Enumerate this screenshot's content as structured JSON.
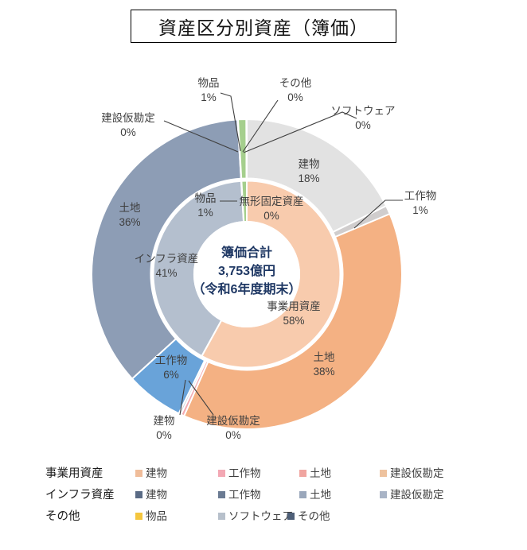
{
  "title": "資産区分別資産（簿価）",
  "chart_data": {
    "type": "pie",
    "subtype": "double-donut",
    "title": "資産区分別資産（簿価）",
    "center_label": {
      "line1": "簿価合計",
      "line2": "3,753億円",
      "line3": "（令和6年度期末）"
    },
    "total_label": "簿価合計 3,753億円（令和6年度期末）",
    "rings": [
      {
        "name": "inner",
        "slices": [
          {
            "label": "事業用資産",
            "pct": 58,
            "display": "58%",
            "color": "#f8cbad",
            "draw": 58
          },
          {
            "label": "インフラ資産",
            "pct": 41,
            "display": "41%",
            "color": "#b4bfce",
            "draw": 41.05
          },
          {
            "label": "無形固定資産",
            "pct": 0,
            "display": "0%",
            "color": "#d9d9d9",
            "draw": 0.05
          },
          {
            "label": "物品",
            "pct": 1,
            "display": "1%",
            "color": "#a5cf8d",
            "draw": 0.9
          }
        ]
      },
      {
        "name": "outer",
        "slices": [
          {
            "group": "事業用資産",
            "label": "建物",
            "pct": 18,
            "display": "18%",
            "color": "#e2e2e2",
            "draw": 17.75
          },
          {
            "group": "事業用資産",
            "label": "工作物",
            "pct": 1,
            "display": "1%",
            "color": "#d0cdcd",
            "draw": 0.9
          },
          {
            "group": "事業用資産",
            "label": "土地",
            "pct": 38,
            "display": "38%",
            "color": "#f4b183",
            "draw": 38
          },
          {
            "group": "事業用資産",
            "label": "建設仮勘定",
            "pct": 0,
            "display": "0%",
            "color": "#f2aab2",
            "draw": 0.35
          },
          {
            "group": "インフラ資産",
            "label": "建物",
            "pct": 0,
            "display": "0%",
            "color": "#c9d1dc",
            "draw": 0.25
          },
          {
            "group": "インフラ資産",
            "label": "工作物",
            "pct": 6,
            "display": "6%",
            "color": "#69a3d9",
            "draw": 6
          },
          {
            "group": "インフラ資産",
            "label": "土地",
            "pct": 36,
            "display": "36%",
            "color": "#8d9db5",
            "draw": 35.85
          },
          {
            "group": "インフラ資産",
            "label": "建設仮勘定",
            "pct": 0,
            "display": "0%",
            "color": "#a9b4c6",
            "draw": 0.05
          },
          {
            "group": "その他",
            "label": "物品",
            "pct": 1,
            "display": "1%",
            "color": "#a5cf8d",
            "draw": 0.85
          },
          {
            "group": "その他",
            "label": "ソフトウェア",
            "pct": 0,
            "display": "0%",
            "color": "#b7c0cb",
            "draw": 0.03
          },
          {
            "group": "その他",
            "label": "その他",
            "pct": 0,
            "display": "0%",
            "color": "#4e5f78",
            "draw": 0.02
          }
        ]
      }
    ],
    "callout_labels": [
      {
        "id": "buppin-outer",
        "line1": "物品",
        "line2": "1%"
      },
      {
        "id": "sonota-outer",
        "line1": "その他",
        "line2": "0%"
      },
      {
        "id": "software-outer",
        "line1": "ソフトウェア",
        "line2": "0%"
      },
      {
        "id": "kensetsu-infra",
        "line1": "建設仮勘定",
        "line2": "0%"
      },
      {
        "id": "tatemono-jigyo",
        "line1": "建物",
        "line2": "18%"
      },
      {
        "id": "kousaku-jigyo",
        "line1": "工作物",
        "line2": "1%"
      },
      {
        "id": "tochi-jigyo",
        "line1": "土地",
        "line2": "38%"
      },
      {
        "id": "kensetsu-jigyo",
        "line1": "建設仮勘定",
        "line2": "0%"
      },
      {
        "id": "tatemono-infra",
        "line1": "建物",
        "line2": "0%"
      },
      {
        "id": "kousaku-infra",
        "line1": "工作物",
        "line2": "6%"
      },
      {
        "id": "tochi-infra",
        "line1": "土地",
        "line2": "36%"
      },
      {
        "id": "infra-shisan",
        "line1": "インフラ資産",
        "line2": "41%"
      },
      {
        "id": "jigyo-shisan",
        "line1": "事業用資産",
        "line2": "58%"
      },
      {
        "id": "buppin-inner",
        "line1": "物品",
        "line2": "1%"
      },
      {
        "id": "mukei-kotei",
        "line1": "無形固定資産",
        "line2": "0%"
      }
    ],
    "legend_position": "bottom"
  },
  "legend": {
    "rows": [
      {
        "header": "事業用資産",
        "items": [
          {
            "label": "建物",
            "color": "#f0bd9a"
          },
          {
            "label": "工作物",
            "color": "#f3a8b4"
          },
          {
            "label": "土地",
            "color": "#f0a5a0"
          },
          {
            "label": "建設仮勘定",
            "color": "#eec29e"
          }
        ]
      },
      {
        "header": "インフラ資産",
        "items": [
          {
            "label": "建物",
            "color": "#5a6b85"
          },
          {
            "label": "工作物",
            "color": "#6b7b93"
          },
          {
            "label": "土地",
            "color": "#9aa7bb"
          },
          {
            "label": "建設仮勘定",
            "color": "#a9b4c6"
          }
        ]
      },
      {
        "header": "その他",
        "items": [
          {
            "label": "物品",
            "color": "#f5c63e"
          },
          {
            "label": "ソフトウェア",
            "color": "#b7c0cb"
          },
          {
            "label": "その他",
            "color": "#4e5f78"
          }
        ]
      }
    ]
  },
  "colors": {
    "leader_line": "#404040",
    "center_text": "#1f3864",
    "label_text": "#3f3f3f"
  }
}
